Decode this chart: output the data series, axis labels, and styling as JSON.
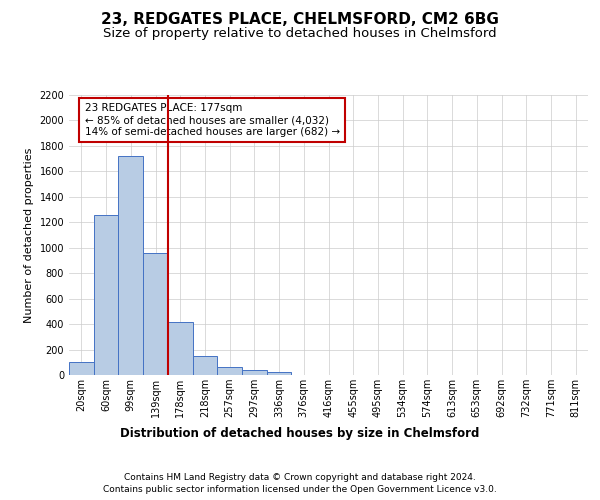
{
  "title": "23, REDGATES PLACE, CHELMSFORD, CM2 6BG",
  "subtitle": "Size of property relative to detached houses in Chelmsford",
  "xlabel": "Distribution of detached houses by size in Chelmsford",
  "ylabel": "Number of detached properties",
  "footer_line1": "Contains HM Land Registry data © Crown copyright and database right 2024.",
  "footer_line2": "Contains public sector information licensed under the Open Government Licence v3.0.",
  "categories": [
    "20sqm",
    "60sqm",
    "99sqm",
    "139sqm",
    "178sqm",
    "218sqm",
    "257sqm",
    "297sqm",
    "336sqm",
    "376sqm",
    "416sqm",
    "455sqm",
    "495sqm",
    "534sqm",
    "574sqm",
    "613sqm",
    "653sqm",
    "692sqm",
    "732sqm",
    "771sqm",
    "811sqm"
  ],
  "values": [
    100,
    1260,
    1720,
    960,
    415,
    150,
    65,
    40,
    25,
    0,
    0,
    0,
    0,
    0,
    0,
    0,
    0,
    0,
    0,
    0,
    0
  ],
  "bar_color": "#b8cce4",
  "bar_edge_color": "#4472c4",
  "bar_alpha": 1.0,
  "vline_pos": 3.5,
  "vline_color": "#c00000",
  "ylim": [
    0,
    2200
  ],
  "yticks": [
    0,
    200,
    400,
    600,
    800,
    1000,
    1200,
    1400,
    1600,
    1800,
    2000,
    2200
  ],
  "annotation_text": "23 REDGATES PLACE: 177sqm\n← 85% of detached houses are smaller (4,032)\n14% of semi-detached houses are larger (682) →",
  "annotation_box_color": "#c00000",
  "title_fontsize": 11,
  "subtitle_fontsize": 9.5,
  "ylabel_fontsize": 8,
  "xlabel_fontsize": 8.5,
  "tick_fontsize": 7,
  "annotation_fontsize": 7.5,
  "footer_fontsize": 6.5,
  "grid_color": "#cccccc",
  "background_color": "#ffffff"
}
